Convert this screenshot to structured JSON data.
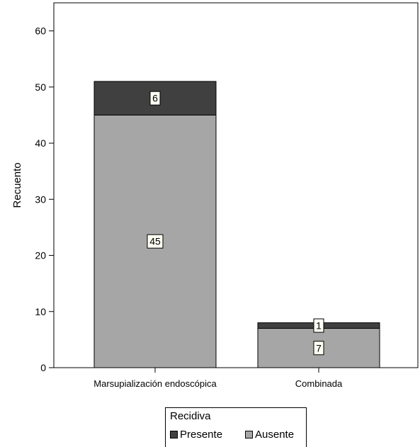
{
  "chart_data": {
    "type": "bar",
    "stacked": true,
    "categories": [
      "Marsupialización endoscópica",
      "Combinada"
    ],
    "series": [
      {
        "name": "Ausente",
        "values": [
          45,
          7
        ],
        "color": "#a6a6a6"
      },
      {
        "name": "Presente",
        "values": [
          6,
          1
        ],
        "color": "#404040"
      }
    ],
    "ylabel": "Recuento",
    "xlabel": "",
    "ylim": [
      0,
      65
    ],
    "yticks": [
      0,
      10,
      20,
      30,
      40,
      50,
      60
    ],
    "grid": false,
    "legend": {
      "title": "Recidiva",
      "placement": "bottom-center",
      "entries": [
        "Presente",
        "Ausente"
      ]
    }
  }
}
